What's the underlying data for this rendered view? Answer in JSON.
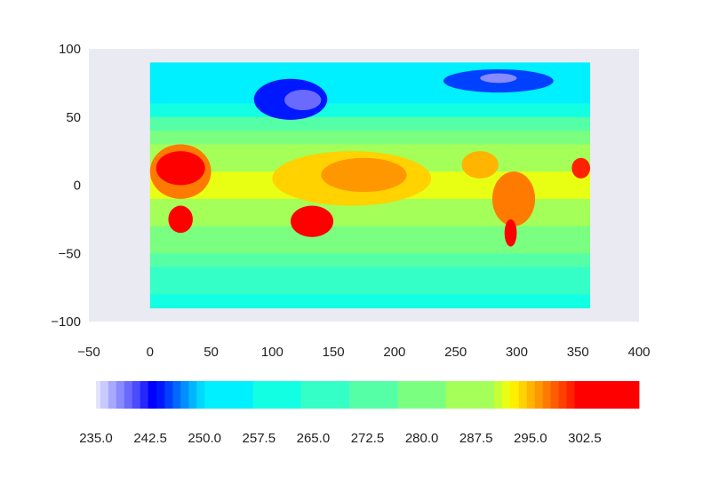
{
  "chart_data": {
    "type": "heatmap",
    "title": "",
    "xlabel": "",
    "ylabel": "",
    "xlim": [
      -50,
      400
    ],
    "ylim": [
      -100,
      100
    ],
    "x_ticks": [
      "−50",
      "0",
      "50",
      "100",
      "150",
      "200",
      "250",
      "300",
      "350",
      "400"
    ],
    "x_tick_values": [
      -50,
      0,
      50,
      100,
      150,
      200,
      250,
      300,
      350,
      400
    ],
    "y_ticks": [
      "100",
      "50",
      "0",
      "−50",
      "−100"
    ],
    "y_tick_values": [
      100,
      50,
      0,
      -50,
      -100
    ],
    "extent": {
      "lon": [
        0,
        360
      ],
      "lat": [
        -90,
        90
      ]
    },
    "grid": false,
    "background_color": "#eaeaf2",
    "colormap": "jet",
    "colorbar": {
      "orientation": "horizontal",
      "range": [
        235.0,
        310.0
      ],
      "ticks": [
        "235.0",
        "242.5",
        "250.0",
        "257.5",
        "265.0",
        "272.5",
        "280.0",
        "287.5",
        "295.0",
        "302.5"
      ],
      "tick_values": [
        235.0,
        242.5,
        250.0,
        257.5,
        265.0,
        272.5,
        280.0,
        287.5,
        295.0,
        302.5
      ],
      "levels": [
        {
          "from": 235.0,
          "to": 235.6,
          "color": "#e3e3ff"
        },
        {
          "from": 235.6,
          "to": 236.7,
          "color": "#c9c9ff"
        },
        {
          "from": 236.7,
          "to": 237.8,
          "color": "#a8a8ff"
        },
        {
          "from": 237.8,
          "to": 238.9,
          "color": "#8a8aff"
        },
        {
          "from": 238.9,
          "to": 240.0,
          "color": "#6a6aff"
        },
        {
          "from": 240.0,
          "to": 241.1,
          "color": "#4b4bff"
        },
        {
          "from": 241.1,
          "to": 242.2,
          "color": "#2626ff"
        },
        {
          "from": 242.2,
          "to": 243.4,
          "color": "#0000ff"
        },
        {
          "from": 243.4,
          "to": 244.5,
          "color": "#0018ff"
        },
        {
          "from": 244.5,
          "to": 245.6,
          "color": "#0040ff"
        },
        {
          "from": 245.6,
          "to": 246.7,
          "color": "#0068ff"
        },
        {
          "from": 246.7,
          "to": 247.8,
          "color": "#0090ff"
        },
        {
          "from": 247.8,
          "to": 248.9,
          "color": "#00b4ff"
        },
        {
          "from": 248.9,
          "to": 250.0,
          "color": "#00d8ff"
        },
        {
          "from": 250.0,
          "to": 256.7,
          "color": "#00f0ff"
        },
        {
          "from": 256.7,
          "to": 263.3,
          "color": "#13ffe4"
        },
        {
          "from": 263.3,
          "to": 270.0,
          "color": "#34ffc6"
        },
        {
          "from": 270.0,
          "to": 276.7,
          "color": "#55ffa6"
        },
        {
          "from": 276.7,
          "to": 283.3,
          "color": "#7bff80"
        },
        {
          "from": 283.3,
          "to": 290.0,
          "color": "#a4ff58"
        },
        {
          "from": 290.0,
          "to": 291.1,
          "color": "#c7ff36"
        },
        {
          "from": 291.1,
          "to": 292.2,
          "color": "#e8ff14"
        },
        {
          "from": 292.2,
          "to": 293.4,
          "color": "#ffee00"
        },
        {
          "from": 293.4,
          "to": 294.5,
          "color": "#ffd200"
        },
        {
          "from": 294.5,
          "to": 295.6,
          "color": "#ffb400"
        },
        {
          "from": 295.6,
          "to": 296.7,
          "color": "#ff9800"
        },
        {
          "from": 296.7,
          "to": 297.8,
          "color": "#ff7a00"
        },
        {
          "from": 297.8,
          "to": 298.9,
          "color": "#ff5e00"
        },
        {
          "from": 298.9,
          "to": 300.0,
          "color": "#ff4000"
        },
        {
          "from": 300.0,
          "to": 301.1,
          "color": "#ff2200"
        },
        {
          "from": 301.1,
          "to": 310.0,
          "color": "#ff0000"
        }
      ]
    },
    "field_bands": [
      {
        "lat_from": 80,
        "lat_to": 90,
        "value": 253
      },
      {
        "lat_from": 70,
        "lat_to": 80,
        "value": 252
      },
      {
        "lat_from": 60,
        "lat_to": 70,
        "value": 254
      },
      {
        "lat_from": 50,
        "lat_to": 60,
        "value": 262
      },
      {
        "lat_from": 40,
        "lat_to": 50,
        "value": 272
      },
      {
        "lat_from": 30,
        "lat_to": 40,
        "value": 279
      },
      {
        "lat_from": 20,
        "lat_to": 30,
        "value": 284
      },
      {
        "lat_from": 10,
        "lat_to": 20,
        "value": 287
      },
      {
        "lat_from": -10,
        "lat_to": 10,
        "value": 292
      },
      {
        "lat_from": -20,
        "lat_to": -10,
        "value": 289
      },
      {
        "lat_from": -30,
        "lat_to": -20,
        "value": 285
      },
      {
        "lat_from": -40,
        "lat_to": -30,
        "value": 280
      },
      {
        "lat_from": -50,
        "lat_to": -40,
        "value": 277
      },
      {
        "lat_from": -60,
        "lat_to": -50,
        "value": 272
      },
      {
        "lat_from": -70,
        "lat_to": -60,
        "value": 268
      },
      {
        "lat_from": -80,
        "lat_to": -70,
        "value": 265
      },
      {
        "lat_from": -90,
        "lat_to": -80,
        "value": 258
      }
    ],
    "field_features": [
      {
        "region": "north-africa-arabia",
        "lon": [
          0,
          50
        ],
        "lat": [
          -10,
          30
        ],
        "value": 297
      },
      {
        "region": "sahara-hot-core",
        "lon": [
          5,
          45
        ],
        "lat": [
          0,
          25
        ],
        "value": 304
      },
      {
        "region": "southern-africa",
        "lon": [
          15,
          35
        ],
        "lat": [
          -35,
          -15
        ],
        "value": 303
      },
      {
        "region": "tropical-asia-pacific",
        "lon": [
          100,
          230
        ],
        "lat": [
          -15,
          25
        ],
        "value": 294
      },
      {
        "region": "warm-pool",
        "lon": [
          140,
          210
        ],
        "lat": [
          -5,
          20
        ],
        "value": 296
      },
      {
        "region": "australia",
        "lon": [
          115,
          150
        ],
        "lat": [
          -38,
          -15
        ],
        "value": 305
      },
      {
        "region": "central-america",
        "lon": [
          255,
          285
        ],
        "lat": [
          5,
          25
        ],
        "value": 295
      },
      {
        "region": "south-america",
        "lon": [
          280,
          315
        ],
        "lat": [
          -30,
          10
        ],
        "value": 297
      },
      {
        "region": "patagonia-hot",
        "lon": [
          290,
          300
        ],
        "lat": [
          -45,
          -25
        ],
        "value": 305
      },
      {
        "region": "west-africa-edge",
        "lon": [
          345,
          360
        ],
        "lat": [
          5,
          20
        ],
        "value": 300
      },
      {
        "region": "siberia-cold",
        "lon": [
          85,
          145
        ],
        "lat": [
          48,
          78
        ],
        "value": 244
      },
      {
        "region": "siberia-core",
        "lon": [
          110,
          140
        ],
        "lat": [
          55,
          70
        ],
        "value": 239
      },
      {
        "region": "arctic-north-america",
        "lon": [
          240,
          330
        ],
        "lat": [
          68,
          85
        ],
        "value": 245
      },
      {
        "region": "greenland-core",
        "lon": [
          270,
          300
        ],
        "lat": [
          75,
          82
        ],
        "value": 238
      }
    ]
  }
}
